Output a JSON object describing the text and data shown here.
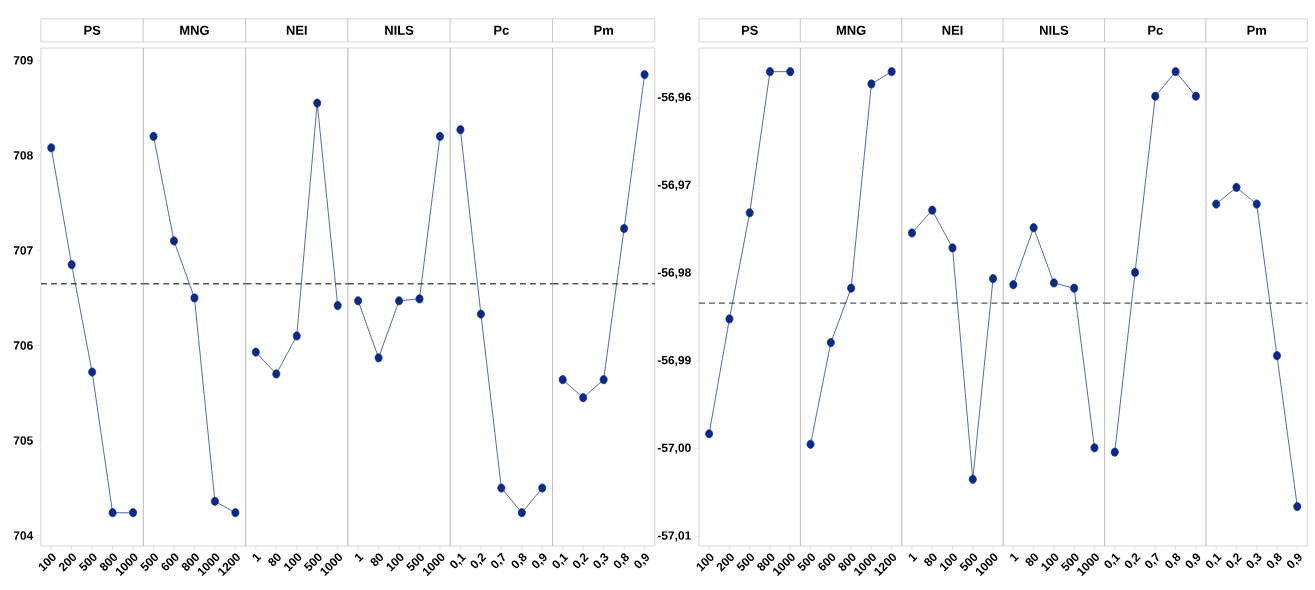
{
  "chart_data": [
    {
      "type": "line",
      "title": "PS",
      "categories": [
        "100",
        "200",
        "500",
        "800",
        "1000"
      ],
      "values": [
        708.08,
        706.85,
        705.72,
        704.24,
        704.24
      ],
      "color": "#0a2a8a",
      "marker": "circle",
      "line_style": "solid",
      "ylim": [
        703.89,
        709.13
      ],
      "yticks": [
        704,
        705,
        706,
        707,
        708,
        709
      ],
      "ref_lines": [
        {
          "axis": "y",
          "value": 706.65,
          "color": "#555555",
          "line_style": "dashed"
        }
      ]
    },
    {
      "type": "line",
      "title": "MNG",
      "categories": [
        "500",
        "600",
        "800",
        "1000",
        "1200"
      ],
      "values": [
        708.2,
        707.1,
        706.5,
        704.36,
        704.24
      ],
      "color": "#0a2a8a",
      "marker": "circle",
      "line_style": "solid",
      "ylim": [
        703.89,
        709.13
      ],
      "tick_labels": "x",
      "ref_lines": [
        {
          "axis": "y",
          "value": 706.65,
          "color": "#555555",
          "line_style": "dashed"
        }
      ]
    },
    {
      "type": "line",
      "title": "NEI",
      "categories": [
        "1",
        "80",
        "100",
        "500",
        "1000"
      ],
      "values": [
        705.93,
        705.7,
        706.1,
        708.55,
        706.42
      ],
      "color": "#0a2a8a",
      "marker": "circle",
      "line_style": "solid",
      "ylim": [
        703.89,
        709.13
      ],
      "tick_labels": "x",
      "ref_lines": [
        {
          "axis": "y",
          "value": 706.65,
          "color": "#555555",
          "line_style": "dashed"
        }
      ]
    },
    {
      "type": "line",
      "title": "NILS",
      "categories": [
        "1",
        "80",
        "100",
        "500",
        "1000"
      ],
      "values": [
        706.47,
        705.87,
        706.47,
        706.49,
        708.2
      ],
      "color": "#0a2a8a",
      "marker": "circle",
      "line_style": "solid",
      "ylim": [
        703.89,
        709.13
      ],
      "tick_labels": "x",
      "ref_lines": [
        {
          "axis": "y",
          "value": 706.65,
          "color": "#555555",
          "line_style": "dashed"
        }
      ]
    },
    {
      "type": "line",
      "title": "Pc",
      "categories": [
        "0,1",
        "0,2",
        "0,7",
        "0,8",
        "0,9"
      ],
      "values": [
        708.27,
        706.33,
        704.5,
        704.24,
        704.5
      ],
      "color": "#0a2a8a",
      "marker": "circle",
      "line_style": "solid",
      "ylim": [
        703.89,
        709.13
      ],
      "tick_labels": "x",
      "ref_lines": [
        {
          "axis": "y",
          "value": 706.65,
          "color": "#555555",
          "line_style": "dashed"
        }
      ]
    },
    {
      "type": "line",
      "title": "Pm",
      "categories": [
        "0,1",
        "0,2",
        "0,3",
        "0,8",
        "0,9"
      ],
      "values": [
        705.64,
        705.45,
        705.64,
        707.23,
        708.85
      ],
      "color": "#0a2a8a",
      "marker": "circle",
      "line_style": "solid",
      "ylim": [
        703.89,
        709.13
      ],
      "tick_labels": "x",
      "ref_lines": [
        {
          "axis": "y",
          "value": 706.65,
          "color": "#555555",
          "line_style": "dashed"
        }
      ]
    },
    {
      "type": "line",
      "title": "PS",
      "categories": [
        "100",
        "200",
        "500",
        "800",
        "1000"
      ],
      "values": [
        -56.9983,
        -56.9852,
        -56.9731,
        -56.957,
        -56.957
      ],
      "color": "#0a2a8a",
      "marker": "circle",
      "line_style": "solid",
      "ylim": [
        -57.0111,
        -56.9543
      ],
      "yticks": [
        {
          "value": -57.01,
          "label": "-57,01"
        },
        {
          "value": -57.0,
          "label": "-57,00"
        },
        {
          "value": -56.99,
          "label": "-56,99"
        },
        {
          "value": -56.98,
          "label": "-56,98"
        },
        {
          "value": -56.97,
          "label": "-56,97"
        },
        {
          "value": -56.96,
          "label": "-56,96"
        }
      ],
      "ref_lines": [
        {
          "axis": "y",
          "value": -56.9834,
          "color": "#555555",
          "line_style": "dashed"
        }
      ]
    },
    {
      "type": "line",
      "title": "MNG",
      "categories": [
        "500",
        "600",
        "800",
        "1000",
        "1200"
      ],
      "values": [
        -56.9995,
        -56.9879,
        -56.9817,
        -56.9584,
        -56.957
      ],
      "color": "#0a2a8a",
      "marker": "circle",
      "line_style": "solid",
      "ylim": [
        -57.0111,
        -56.9543
      ],
      "tick_labels": "x",
      "ref_lines": [
        {
          "axis": "y",
          "value": -56.9834,
          "color": "#555555",
          "line_style": "dashed"
        }
      ]
    },
    {
      "type": "line",
      "title": "NEI",
      "categories": [
        "1",
        "80",
        "100",
        "500",
        "1000"
      ],
      "values": [
        -56.9754,
        -56.9728,
        -56.9771,
        -57.0035,
        -56.9806
      ],
      "color": "#0a2a8a",
      "marker": "circle",
      "line_style": "solid",
      "ylim": [
        -57.0111,
        -56.9543
      ],
      "tick_labels": "x",
      "ref_lines": [
        {
          "axis": "y",
          "value": -56.9834,
          "color": "#555555",
          "line_style": "dashed"
        }
      ]
    },
    {
      "type": "line",
      "title": "NILS",
      "categories": [
        "1",
        "80",
        "100",
        "500",
        "1000"
      ],
      "values": [
        -56.9813,
        -56.9748,
        -56.9811,
        -56.9817,
        -56.9999
      ],
      "color": "#0a2a8a",
      "marker": "circle",
      "line_style": "solid",
      "ylim": [
        -57.0111,
        -56.9543
      ],
      "tick_labels": "x",
      "ref_lines": [
        {
          "axis": "y",
          "value": -56.9834,
          "color": "#555555",
          "line_style": "dashed"
        }
      ]
    },
    {
      "type": "line",
      "title": "Pc",
      "categories": [
        "0,1",
        "0,2",
        "0,7",
        "0,8",
        "0,9"
      ],
      "values": [
        -57.0004,
        -56.9799,
        -56.9598,
        -56.957,
        -56.9598
      ],
      "color": "#0a2a8a",
      "marker": "circle",
      "line_style": "solid",
      "ylim": [
        -57.0111,
        -56.9543
      ],
      "tick_labels": "x",
      "ref_lines": [
        {
          "axis": "y",
          "value": -56.9834,
          "color": "#555555",
          "line_style": "dashed"
        }
      ]
    },
    {
      "type": "line",
      "title": "Pm",
      "categories": [
        "0,1",
        "0,2",
        "0,3",
        "0,8",
        "0,9"
      ],
      "values": [
        -56.9721,
        -56.9702,
        -56.9721,
        -56.9894,
        -57.0066
      ],
      "color": "#0a2a8a",
      "marker": "circle",
      "line_style": "solid",
      "ylim": [
        -57.0111,
        -56.9543
      ],
      "tick_labels": "x",
      "ref_lines": [
        {
          "axis": "y",
          "value": -56.9834,
          "color": "#555555",
          "line_style": "dashed"
        }
      ]
    }
  ]
}
